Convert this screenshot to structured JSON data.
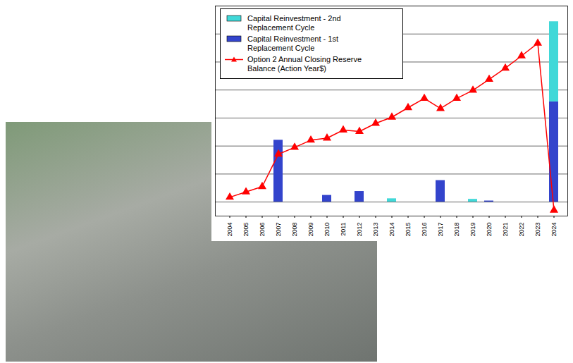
{
  "chart_data": {
    "type": "bar",
    "categories": [
      "2004",
      "2005",
      "2006",
      "2007",
      "2008",
      "2009",
      "2010",
      "2011",
      "2012",
      "2013",
      "2014",
      "2015",
      "2016",
      "2017",
      "2018",
      "2019",
      "2020",
      "2021",
      "2022",
      "2023",
      "2024"
    ],
    "series": [
      {
        "name": "Capital Reinvestment - 2nd Replacement Cycle",
        "color": "#40d8d8",
        "values": [
          null,
          null,
          null,
          null,
          null,
          null,
          null,
          null,
          null,
          null,
          0.12,
          null,
          null,
          null,
          null,
          0.1,
          null,
          null,
          null,
          null,
          2.86
        ]
      },
      {
        "name": "Capital Reinvestment - 1st Replacement Cycle",
        "color": "#3344cc",
        "values": [
          null,
          null,
          null,
          2.21,
          null,
          null,
          0.24,
          null,
          0.38,
          null,
          null,
          null,
          null,
          0.77,
          null,
          null,
          0.04,
          null,
          null,
          null,
          3.58
        ]
      },
      {
        "name": "Option 2 Annual Closing Reserve Balance (Action Year$)",
        "type": "line",
        "color": "#ff0000",
        "marker": "triangle",
        "values": [
          0.17,
          0.36,
          0.55,
          1.71,
          1.95,
          2.21,
          2.28,
          2.57,
          2.52,
          2.81,
          3.03,
          3.37,
          3.7,
          3.34,
          3.7,
          3.99,
          4.38,
          4.78,
          5.22,
          5.67,
          -0.29
        ]
      }
    ],
    "ylim": [
      -0.5,
      7
    ],
    "yticks": [
      0,
      1,
      2,
      3,
      4,
      5,
      6,
      7
    ],
    "grid": true,
    "stacked": true,
    "tick_labels": "x",
    "legend": "top-left"
  }
}
